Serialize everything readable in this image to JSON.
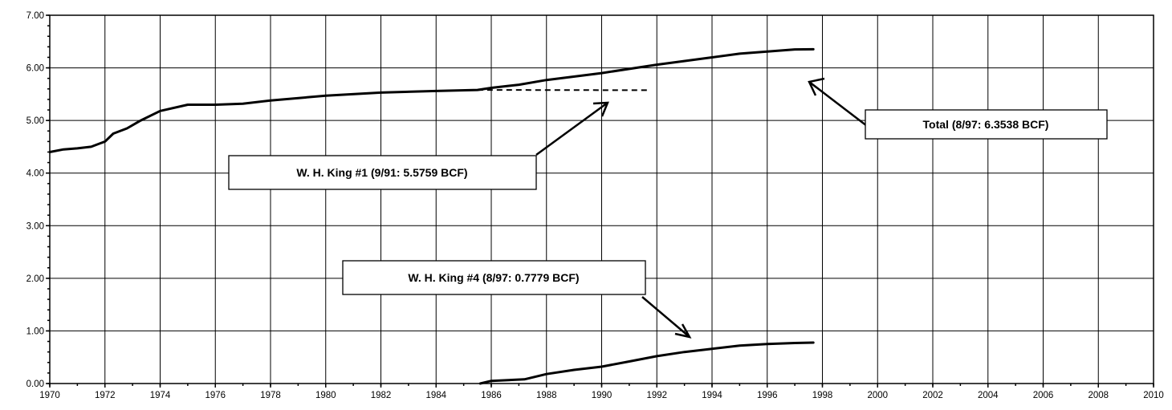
{
  "chart_data": {
    "type": "line",
    "title": "",
    "xlabel": "",
    "ylabel": "",
    "xlim": [
      1970,
      2010
    ],
    "ylim": [
      0,
      7
    ],
    "grid": true,
    "x_ticks": [
      "1970",
      "1972",
      "1974",
      "1976",
      "1978",
      "1980",
      "1982",
      "1984",
      "1986",
      "1988",
      "1990",
      "1992",
      "1994",
      "1996",
      "1998",
      "2000",
      "2002",
      "2004",
      "2006",
      "2008",
      "2010"
    ],
    "y_ticks": [
      "0.00",
      "1.00",
      "2.00",
      "3.00",
      "4.00",
      "5.00",
      "6.00",
      "7.00"
    ],
    "series": [
      {
        "style": "solid",
        "points": [
          [
            1970,
            4.4
          ],
          [
            1970.5,
            4.45
          ],
          [
            1971,
            4.47
          ],
          [
            1971.5,
            4.5
          ],
          [
            1972,
            4.6
          ],
          [
            1972.3,
            4.75
          ],
          [
            1972.8,
            4.85
          ],
          [
            1973.3,
            5.0
          ],
          [
            1974,
            5.18
          ],
          [
            1975,
            5.3
          ],
          [
            1976,
            5.3
          ],
          [
            1977,
            5.32
          ],
          [
            1978,
            5.38
          ],
          [
            1980,
            5.47
          ],
          [
            1982,
            5.53
          ],
          [
            1984,
            5.56
          ],
          [
            1985.5,
            5.58
          ],
          [
            1986,
            5.62
          ],
          [
            1987,
            5.68
          ],
          [
            1988,
            5.77
          ],
          [
            1990,
            5.9
          ],
          [
            1992,
            6.06
          ],
          [
            1994,
            6.2
          ],
          [
            1995,
            6.27
          ],
          [
            1996,
            6.31
          ],
          [
            1997,
            6.35
          ],
          [
            1997.67,
            6.354
          ]
        ]
      },
      {
        "style": "dashed",
        "points": [
          [
            1985.5,
            5.58
          ],
          [
            1991.7,
            5.576
          ]
        ]
      },
      {
        "style": "solid",
        "points": [
          [
            1985.6,
            0.0
          ],
          [
            1986,
            0.05
          ],
          [
            1987.2,
            0.08
          ],
          [
            1988,
            0.18
          ],
          [
            1989,
            0.26
          ],
          [
            1990,
            0.32
          ],
          [
            1991,
            0.42
          ],
          [
            1992,
            0.52
          ],
          [
            1993,
            0.6
          ],
          [
            1994,
            0.66
          ],
          [
            1995,
            0.72
          ],
          [
            1996,
            0.75
          ],
          [
            1997,
            0.77
          ],
          [
            1997.67,
            0.778
          ]
        ]
      }
    ],
    "annotations": [
      {
        "text": "Total (8/97: 6.3538 BCF)",
        "arrow_to": [
          1997.7,
          6.05
        ]
      },
      {
        "text": "W. H. King #1 (9/91: 5.5759 BCF)",
        "arrow_to": [
          1991.4,
          5.35
        ]
      },
      {
        "text": "W. H. King #4 (8/97: 0.7779 BCF)",
        "arrow_to": [
          1993.2,
          0.8
        ]
      }
    ]
  }
}
